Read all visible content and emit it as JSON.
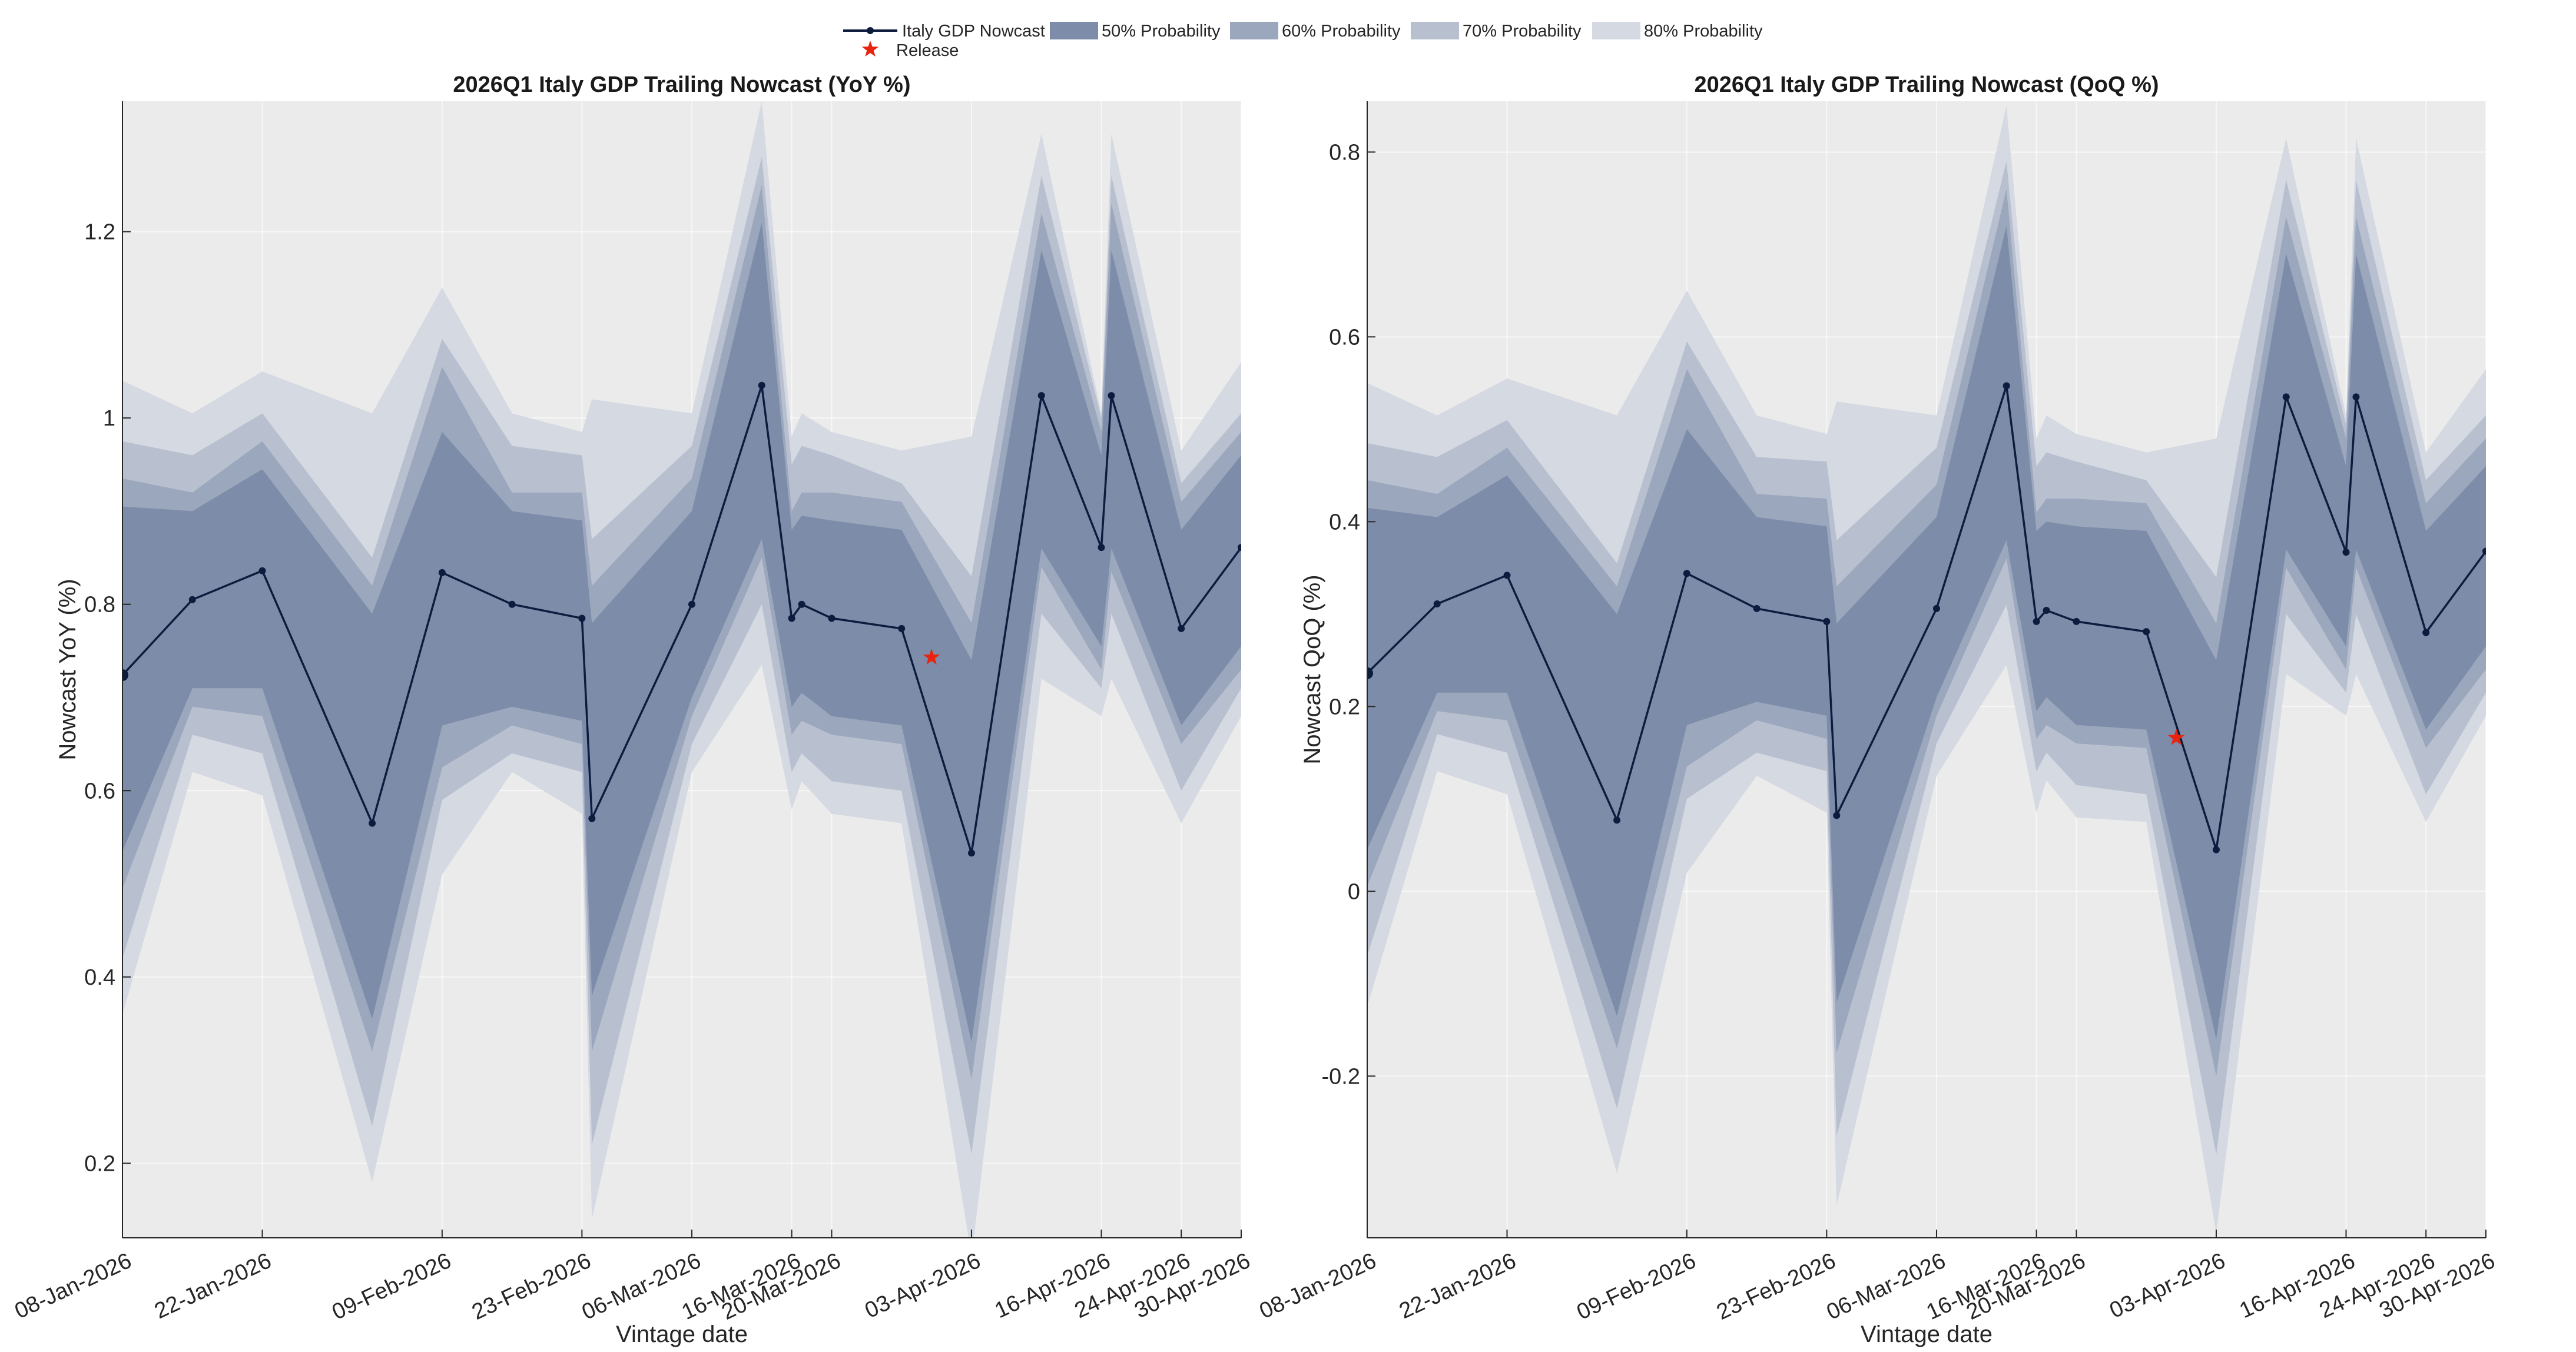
{
  "legend": {
    "items": [
      {
        "label": "Italy GDP Nowcast",
        "kind": "line",
        "color": "#0d1b3e"
      },
      {
        "label": "50% Probability",
        "kind": "patch",
        "color": "#7d8ca8"
      },
      {
        "label": "60% Probability",
        "kind": "patch",
        "color": "#9ba7bd"
      },
      {
        "label": "70% Probability",
        "kind": "patch",
        "color": "#b8c0d0"
      },
      {
        "label": "80% Probability",
        "kind": "patch",
        "color": "#d4d9e2"
      },
      {
        "label": "Release",
        "kind": "star",
        "color": "#e8230f"
      }
    ]
  },
  "colors": {
    "plot_bg": "#ebebeb",
    "line": "#0d1b3e",
    "band_50": "#7d8ca8",
    "band_60": "#9ba7bd",
    "band_70": "#b8c0d0",
    "band_80": "#d4d9e2",
    "release": "#e8230f"
  },
  "chart_data": [
    {
      "type": "line",
      "title": "2026Q1 Italy GDP Trailing Nowcast (YoY %)",
      "xlabel": "Vintage date",
      "ylabel": "Nowcast YoY (%)",
      "xlim": [
        "2026-01-08",
        "2026-04-30"
      ],
      "ylim": [
        0.12,
        1.34
      ],
      "yticks": [
        0.2,
        0.4,
        0.6,
        0.8,
        1.0
      ],
      "ytick_labels": [
        "0.2",
        "0.4",
        "0.6",
        "0.8",
        "1"
      ],
      "yticks_extra": [
        1.2
      ],
      "yticks_extra_labels": [
        "1.2"
      ],
      "xticks": [
        "2026-01-08",
        "2026-01-22",
        "2026-02-09",
        "2026-02-23",
        "2026-03-06",
        "2026-03-16",
        "2026-03-20",
        "2026-04-03",
        "2026-04-16",
        "2026-04-24",
        "2026-04-30"
      ],
      "xtick_labels": [
        "08-Jan-2026",
        "22-Jan-2026",
        "09-Feb-2026",
        "23-Feb-2026",
        "06-Mar-2026",
        "16-Mar-2026",
        "20-Mar-2026",
        "03-Apr-2026",
        "16-Apr-2026",
        "24-Apr-2026",
        "30-Apr-2026"
      ],
      "grid": true,
      "x": [
        "2026-01-08",
        "2026-01-15",
        "2026-01-22",
        "2026-02-02",
        "2026-02-09",
        "2026-02-16",
        "2026-02-23",
        "2026-02-24",
        "2026-03-06",
        "2026-03-13",
        "2026-03-16",
        "2026-03-17",
        "2026-03-20",
        "2026-03-27",
        "2026-04-03",
        "2026-04-10",
        "2026-04-16",
        "2026-04-17",
        "2026-04-24",
        "2026-04-30"
      ],
      "series": [
        {
          "name": "Italy GDP Nowcast",
          "values": [
            0.724,
            0.805,
            0.836,
            0.565,
            0.834,
            0.8,
            0.785,
            0.57,
            0.8,
            1.035,
            0.785,
            0.8,
            0.785,
            0.774,
            0.533,
            1.024,
            0.861,
            1.024,
            0.774,
            0.861
          ]
        },
        {
          "name": "50% Probability",
          "upper": [
            0.905,
            0.9,
            0.945,
            0.79,
            0.985,
            0.9,
            0.89,
            0.78,
            0.9,
            1.21,
            0.88,
            0.895,
            0.89,
            0.88,
            0.74,
            1.18,
            0.96,
            1.18,
            0.88,
            0.96
          ],
          "lower": [
            0.535,
            0.71,
            0.71,
            0.355,
            0.67,
            0.69,
            0.675,
            0.38,
            0.7,
            0.87,
            0.69,
            0.705,
            0.68,
            0.67,
            0.33,
            0.86,
            0.755,
            0.86,
            0.67,
            0.755
          ]
        },
        {
          "name": "60% Probability",
          "upper": [
            0.935,
            0.92,
            0.975,
            0.82,
            1.055,
            0.92,
            0.92,
            0.82,
            0.935,
            1.25,
            0.9,
            0.92,
            0.92,
            0.91,
            0.78,
            1.22,
            0.985,
            1.23,
            0.91,
            0.985
          ],
          "lower": [
            0.495,
            0.69,
            0.68,
            0.32,
            0.625,
            0.67,
            0.65,
            0.32,
            0.68,
            0.85,
            0.66,
            0.675,
            0.66,
            0.65,
            0.29,
            0.84,
            0.73,
            0.835,
            0.65,
            0.73
          ]
        },
        {
          "name": "70% Probability",
          "upper": [
            0.975,
            0.96,
            1.005,
            0.85,
            1.085,
            0.97,
            0.96,
            0.87,
            0.97,
            1.28,
            0.95,
            0.97,
            0.96,
            0.93,
            0.83,
            1.26,
            1.0,
            1.26,
            0.93,
            1.005
          ]
        },
        {
          "name": "80% Probability",
          "upper": [
            1.04,
            1.005,
            1.05,
            1.005,
            1.14,
            1.005,
            0.985,
            1.02,
            1.005,
            1.34,
            0.98,
            1.005,
            0.985,
            0.965,
            0.98,
            1.305,
            1.005,
            1.305,
            0.965,
            1.06
          ],
          "lower": [
            0.36,
            0.62,
            0.595,
            0.18,
            0.51,
            0.62,
            0.575,
            0.14,
            0.62,
            0.735,
            0.58,
            0.61,
            0.575,
            0.565,
            0.1,
            0.72,
            0.68,
            0.72,
            0.565,
            0.68
          ]
        }
      ],
      "band_70_lower": [
        0.42,
        0.66,
        0.64,
        0.24,
        0.59,
        0.64,
        0.62,
        0.22,
        0.65,
        0.8,
        0.62,
        0.64,
        0.61,
        0.6,
        0.21,
        0.79,
        0.71,
        0.79,
        0.6,
        0.71
      ],
      "release": {
        "x": "2026-03-30",
        "y": 0.743
      }
    },
    {
      "type": "line",
      "title": "2026Q1 Italy GDP Trailing Nowcast (QoQ %)",
      "xlabel": "Vintage date",
      "ylabel": "Nowcast QoQ (%)",
      "xlim": [
        "2026-01-08",
        "2026-04-30"
      ],
      "ylim": [
        -0.375,
        0.855
      ],
      "yticks": [
        -0.2,
        0,
        0.2,
        0.4,
        0.6,
        0.8
      ],
      "ytick_labels": [
        "-0.2",
        "0",
        "0.2",
        "0.4",
        "0.6",
        "0.8"
      ],
      "xticks": [
        "2026-01-08",
        "2026-01-22",
        "2026-02-09",
        "2026-02-23",
        "2026-03-06",
        "2026-03-16",
        "2026-03-20",
        "2026-04-03",
        "2026-04-16",
        "2026-04-24",
        "2026-04-30"
      ],
      "xtick_labels": [
        "08-Jan-2026",
        "22-Jan-2026",
        "09-Feb-2026",
        "23-Feb-2026",
        "06-Mar-2026",
        "16-Mar-2026",
        "20-Mar-2026",
        "03-Apr-2026",
        "16-Apr-2026",
        "24-Apr-2026",
        "30-Apr-2026"
      ],
      "grid": true,
      "x": [
        "2026-01-08",
        "2026-01-15",
        "2026-01-22",
        "2026-02-02",
        "2026-02-09",
        "2026-02-16",
        "2026-02-23",
        "2026-02-24",
        "2026-03-06",
        "2026-03-13",
        "2026-03-16",
        "2026-03-17",
        "2026-03-20",
        "2026-03-27",
        "2026-04-03",
        "2026-04-10",
        "2026-04-16",
        "2026-04-17",
        "2026-04-24",
        "2026-04-30"
      ],
      "series": [
        {
          "name": "Italy GDP Nowcast",
          "values": [
            0.236,
            0.311,
            0.342,
            0.077,
            0.344,
            0.306,
            0.292,
            0.082,
            0.306,
            0.547,
            0.292,
            0.304,
            0.292,
            0.281,
            0.045,
            0.535,
            0.367,
            0.535,
            0.28,
            0.368
          ]
        },
        {
          "name": "50% Probability",
          "upper": [
            0.415,
            0.405,
            0.45,
            0.3,
            0.5,
            0.405,
            0.395,
            0.29,
            0.405,
            0.72,
            0.39,
            0.4,
            0.395,
            0.39,
            0.25,
            0.69,
            0.46,
            0.69,
            0.39,
            0.46
          ],
          "lower": [
            0.045,
            0.215,
            0.215,
            -0.135,
            0.18,
            0.205,
            0.19,
            -0.12,
            0.21,
            0.38,
            0.195,
            0.21,
            0.18,
            0.175,
            -0.16,
            0.37,
            0.265,
            0.37,
            0.175,
            0.265
          ]
        },
        {
          "name": "60% Probability",
          "upper": [
            0.445,
            0.43,
            0.48,
            0.33,
            0.565,
            0.43,
            0.425,
            0.33,
            0.44,
            0.76,
            0.41,
            0.425,
            0.425,
            0.42,
            0.29,
            0.73,
            0.49,
            0.73,
            0.42,
            0.49
          ],
          "lower": [
            0.005,
            0.195,
            0.185,
            -0.17,
            0.135,
            0.185,
            0.165,
            -0.175,
            0.19,
            0.36,
            0.165,
            0.18,
            0.16,
            0.155,
            -0.2,
            0.35,
            0.24,
            0.35,
            0.155,
            0.24
          ]
        },
        {
          "name": "70% Probability",
          "upper": [
            0.485,
            0.47,
            0.51,
            0.355,
            0.595,
            0.47,
            0.465,
            0.38,
            0.48,
            0.79,
            0.46,
            0.475,
            0.465,
            0.445,
            0.34,
            0.77,
            0.505,
            0.77,
            0.445,
            0.515
          ]
        },
        {
          "name": "80% Probability",
          "upper": [
            0.55,
            0.515,
            0.555,
            0.515,
            0.65,
            0.515,
            0.495,
            0.53,
            0.515,
            0.85,
            0.49,
            0.515,
            0.495,
            0.475,
            0.49,
            0.815,
            0.515,
            0.815,
            0.475,
            0.565
          ],
          "lower": [
            -0.125,
            0.13,
            0.105,
            -0.305,
            0.02,
            0.125,
            0.085,
            -0.34,
            0.125,
            0.245,
            0.085,
            0.12,
            0.08,
            0.075,
            -0.37,
            0.235,
            0.19,
            0.235,
            0.075,
            0.19
          ]
        }
      ],
      "band_70_lower": [
        -0.07,
        0.17,
        0.15,
        -0.235,
        0.1,
        0.15,
        0.13,
        -0.265,
        0.16,
        0.31,
        0.13,
        0.15,
        0.115,
        0.105,
        -0.285,
        0.3,
        0.215,
        0.3,
        0.105,
        0.215
      ],
      "release": {
        "x": "2026-03-30",
        "y": 0.166
      }
    }
  ]
}
